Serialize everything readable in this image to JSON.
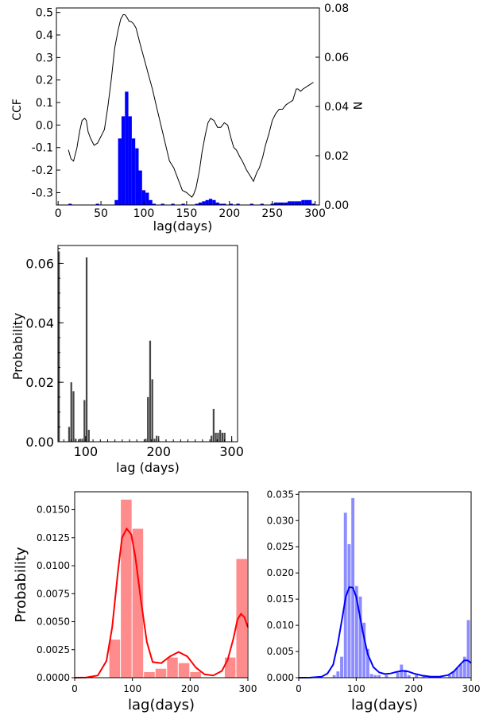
{
  "chart_data": [
    {
      "id": "ccf",
      "type": "line",
      "xlabel": "lag(days)",
      "ylabel": "CCF",
      "ylabel_right": "N",
      "xlim": [
        -2,
        305
      ],
      "ylim": [
        -0.355,
        0.52
      ],
      "ylim_right": [
        0.0,
        0.08
      ],
      "xticks": [
        0,
        50,
        100,
        150,
        200,
        250,
        300
      ],
      "yticks": [
        -0.3,
        -0.2,
        -0.1,
        0.0,
        0.1,
        0.2,
        0.3,
        0.4,
        0.5
      ],
      "yticks_right": [
        0.0,
        0.02,
        0.04,
        0.06,
        0.08
      ],
      "line_color": "#000000",
      "bar_color": "#0000ff",
      "series": [
        {
          "kind": "line",
          "x": [
            12,
            15,
            18,
            22,
            25,
            28,
            31,
            33,
            35,
            38,
            42,
            46,
            50,
            54,
            58,
            62,
            66,
            70,
            73,
            76,
            78,
            80,
            83,
            85,
            88,
            91,
            95,
            100,
            105,
            110,
            115,
            120,
            125,
            130,
            135,
            140,
            145,
            150,
            153,
            156,
            158,
            161,
            165,
            168,
            172,
            175,
            178,
            182,
            186,
            190,
            194,
            198,
            202,
            205,
            208,
            212,
            215,
            220,
            225,
            228,
            232,
            235,
            239,
            242,
            246,
            250,
            254,
            258,
            262,
            266,
            270,
            274,
            278,
            280,
            283,
            286,
            290,
            294,
            298
          ],
          "y": [
            -0.11,
            -0.15,
            -0.16,
            -0.1,
            -0.03,
            0.02,
            0.03,
            0.02,
            -0.03,
            -0.06,
            -0.09,
            -0.08,
            -0.05,
            -0.02,
            0.08,
            0.2,
            0.34,
            0.42,
            0.47,
            0.49,
            0.49,
            0.48,
            0.46,
            0.46,
            0.45,
            0.43,
            0.37,
            0.3,
            0.23,
            0.16,
            0.08,
            0.0,
            -0.08,
            -0.16,
            -0.19,
            -0.24,
            -0.29,
            -0.3,
            -0.31,
            -0.32,
            -0.31,
            -0.28,
            -0.2,
            -0.12,
            -0.04,
            0.01,
            0.03,
            0.02,
            -0.01,
            -0.01,
            0.01,
            0.0,
            -0.06,
            -0.1,
            -0.11,
            -0.14,
            -0.16,
            -0.2,
            -0.23,
            -0.25,
            -0.21,
            -0.19,
            -0.14,
            -0.09,
            -0.04,
            0.02,
            0.05,
            0.07,
            0.07,
            0.09,
            0.1,
            0.11,
            0.16,
            0.16,
            0.15,
            0.16,
            0.17,
            0.18,
            0.19
          ]
        },
        {
          "kind": "bar",
          "axis": "right",
          "bin_width": 4,
          "x": [
            12,
            44,
            66,
            70,
            74,
            78,
            82,
            86,
            90,
            94,
            98,
            102,
            106,
            110,
            120,
            132,
            144,
            160,
            164,
            168,
            172,
            176,
            180,
            184,
            188,
            192,
            200,
            208,
            224,
            236,
            248,
            252,
            256,
            260,
            264,
            268,
            272,
            276,
            280,
            284,
            288,
            292,
            296
          ],
          "y": [
            0.0005,
            0.0005,
            0.002,
            0.027,
            0.036,
            0.046,
            0.036,
            0.027,
            0.023,
            0.014,
            0.006,
            0.005,
            0.002,
            0.0005,
            0.0005,
            0.0005,
            0.0005,
            0.0005,
            0.001,
            0.0015,
            0.002,
            0.0025,
            0.002,
            0.001,
            0.0005,
            0.0005,
            0.0005,
            0.0005,
            0.0005,
            0.0005,
            0.0005,
            0.001,
            0.001,
            0.001,
            0.001,
            0.0015,
            0.0015,
            0.0015,
            0.0015,
            0.002,
            0.002,
            0.002,
            0.0005
          ]
        }
      ]
    },
    {
      "id": "prob",
      "type": "bar",
      "xlabel": "lag (days)",
      "ylabel": "Probability",
      "xlim": [
        62,
        308
      ],
      "ylim": [
        0,
        0.066
      ],
      "xticks": [
        100,
        200,
        300
      ],
      "yticks": [
        0.0,
        0.02,
        0.04,
        0.06
      ],
      "ytick_labels": [
        "0.00",
        "0.02",
        "0.04",
        "0.06"
      ],
      "bar_color": "#474747",
      "bin_width": 3,
      "x": [
        62,
        76,
        79,
        82,
        85,
        91,
        94,
        97,
        100,
        103,
        181,
        184,
        187,
        190,
        193,
        196,
        271,
        274,
        277,
        280,
        283,
        286,
        289
      ],
      "values": [
        0.064,
        0.005,
        0.02,
        0.017,
        0.001,
        0.001,
        0.001,
        0.014,
        0.062,
        0.004,
        0.001,
        0.015,
        0.034,
        0.021,
        0.001,
        0.002,
        0.002,
        0.011,
        0.003,
        0.003,
        0.004,
        0.003,
        0.003
      ]
    },
    {
      "id": "red",
      "type": "bar",
      "xlabel": "lag(days)",
      "ylabel": "Probability",
      "xlim": [
        0,
        300
      ],
      "ylim": [
        0,
        0.0166
      ],
      "xticks": [
        0,
        100,
        200,
        300
      ],
      "yticks": [
        0.0,
        0.0025,
        0.005,
        0.0075,
        0.01,
        0.0125,
        0.015
      ],
      "ytick_labels": [
        "0.0000",
        "0.0025",
        "0.0050",
        "0.0075",
        "0.0100",
        "0.0125",
        "0.0150"
      ],
      "bar_color": "#ff8c8c",
      "curve_color": "#ff0000",
      "bin_edges": [
        0,
        20,
        40,
        60,
        80,
        100,
        120,
        140,
        160,
        180,
        200,
        220,
        240,
        260,
        280,
        300
      ],
      "values": [
        0,
        0,
        0,
        0.0034,
        0.0159,
        0.0133,
        0.0005,
        0.0008,
        0.0018,
        0.0013,
        0.0005,
        0.0,
        0.0,
        0.0018,
        0.0106
      ],
      "kde_x": [
        0,
        20,
        40,
        55,
        65,
        75,
        82,
        90,
        98,
        105,
        115,
        125,
        135,
        150,
        165,
        180,
        195,
        210,
        225,
        240,
        255,
        265,
        275,
        282,
        288,
        294,
        300
      ],
      "kde_y": [
        0.0,
        2e-05,
        0.0002,
        0.0015,
        0.0045,
        0.0095,
        0.0125,
        0.0133,
        0.0128,
        0.0108,
        0.0068,
        0.0032,
        0.0014,
        0.0013,
        0.0019,
        0.0023,
        0.0019,
        0.0009,
        0.0003,
        0.0002,
        0.0006,
        0.0016,
        0.0035,
        0.0052,
        0.0057,
        0.0054,
        0.0045
      ]
    },
    {
      "id": "blue",
      "type": "bar",
      "xlabel": "lag(days)",
      "xlim": [
        0,
        300
      ],
      "ylim": [
        0,
        0.0355
      ],
      "xticks": [
        0,
        100,
        200,
        300
      ],
      "yticks": [
        0.0,
        0.005,
        0.01,
        0.015,
        0.02,
        0.025,
        0.03,
        0.035
      ],
      "ytick_labels": [
        "0.000",
        "0.005",
        "0.010",
        "0.015",
        "0.020",
        "0.025",
        "0.030",
        "0.035"
      ],
      "bar_color": "#8c8cff",
      "curve_color": "#0000ff",
      "bin_width": 6.5,
      "x": [
        59,
        65.5,
        72,
        78.5,
        85,
        91.5,
        98,
        104.5,
        111,
        117.5,
        124,
        130.5,
        137,
        150,
        169.5,
        176,
        182.5,
        189,
        202,
        215,
        260,
        266.5,
        273,
        279.5,
        286,
        292.5
      ],
      "values": [
        0.0005,
        0.0012,
        0.004,
        0.0315,
        0.0255,
        0.0343,
        0.0175,
        0.0155,
        0.0105,
        0.0055,
        0.0007,
        0.0005,
        0.0005,
        0.0005,
        0.001,
        0.0025,
        0.0015,
        0.0005,
        0.0005,
        0.0005,
        0.0005,
        0.0012,
        0.0018,
        0.0025,
        0.004,
        0.011
      ],
      "kde_x": [
        0,
        20,
        40,
        50,
        60,
        68,
        75,
        82,
        88,
        94,
        100,
        106,
        112,
        120,
        130,
        140,
        150,
        160,
        170,
        180,
        190,
        200,
        215,
        230,
        245,
        260,
        270,
        280,
        288,
        294,
        300
      ],
      "kde_y": [
        0.0,
        2e-05,
        0.0002,
        0.0008,
        0.0025,
        0.0065,
        0.011,
        0.0155,
        0.0173,
        0.0172,
        0.0155,
        0.012,
        0.0085,
        0.0045,
        0.002,
        0.001,
        0.0007,
        0.0008,
        0.0011,
        0.0013,
        0.0012,
        0.0008,
        0.0004,
        0.0002,
        0.0002,
        0.0005,
        0.0012,
        0.0024,
        0.0033,
        0.0033,
        0.0028
      ]
    }
  ]
}
